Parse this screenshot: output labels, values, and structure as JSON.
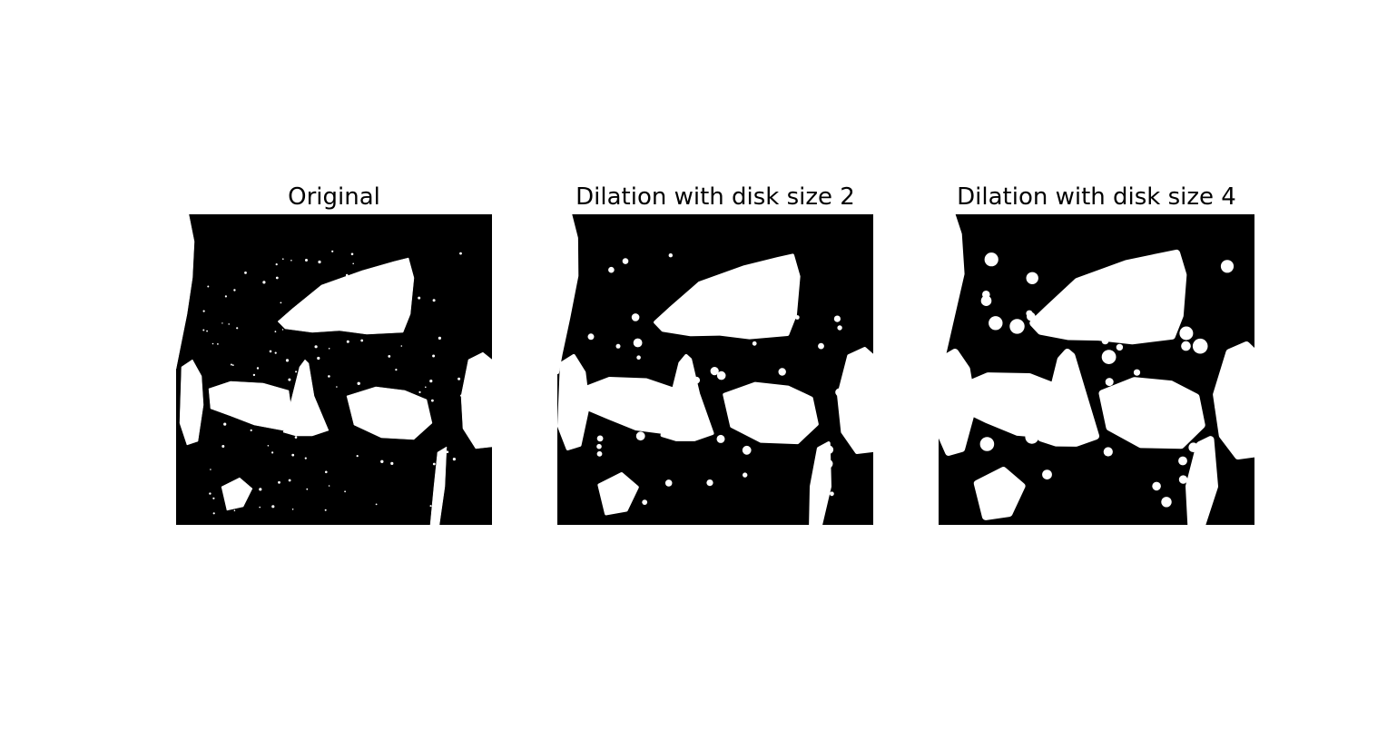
{
  "figure": {
    "panels": [
      {
        "title": "Original",
        "dilation_disk_size": 0
      },
      {
        "title": "Dilation with disk size 2",
        "dilation_disk_size": 2
      },
      {
        "title": "Dilation with disk size 4",
        "dilation_disk_size": 4
      }
    ],
    "colors": {
      "foreground": "#ffffff",
      "background": "#000000"
    }
  }
}
